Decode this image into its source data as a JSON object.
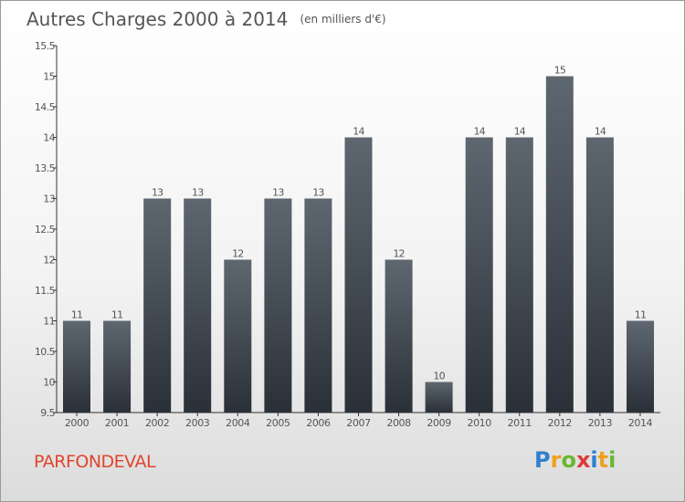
{
  "title": "Autres Charges 2000 à 2014",
  "subtitle": "(en milliers d'€)",
  "commune": "PARFONDEVAL",
  "logo": {
    "letters": [
      "P",
      "r",
      "o",
      "x",
      "i",
      "t",
      "i"
    ],
    "colors": [
      "#2f7fd0",
      "#f0a020",
      "#6ab82f",
      "#e03a3a",
      "#2f7fd0",
      "#f0a020",
      "#6ab82f"
    ]
  },
  "colors": {
    "bar_top": "#5e6770",
    "bar_bottom": "#2a3038",
    "axis": "#333333",
    "text": "#555555",
    "commune": "#e0452b"
  },
  "chart_data": {
    "type": "bar",
    "title": "Autres Charges 2000 à 2014",
    "subtitle": "(en milliers d'€)",
    "xlabel": "",
    "ylabel": "",
    "categories": [
      "2000",
      "2001",
      "2002",
      "2003",
      "2004",
      "2005",
      "2006",
      "2007",
      "2008",
      "2009",
      "2010",
      "2011",
      "2012",
      "2013",
      "2014"
    ],
    "values": [
      11,
      11,
      13,
      13,
      12,
      13,
      13,
      14,
      12,
      10,
      14,
      14,
      15,
      14,
      11
    ],
    "data_labels": [
      "11",
      "11",
      "13",
      "13",
      "12",
      "13",
      "13",
      "14",
      "12",
      "10",
      "14",
      "14",
      "15",
      "14",
      "11"
    ],
    "ylim": [
      9.5,
      15.5
    ],
    "yticks": [
      9.5,
      10,
      10.5,
      11,
      11.5,
      12,
      12.5,
      13,
      13.5,
      14,
      14.5,
      15,
      15.5
    ],
    "ytick_labels": [
      "9.5",
      "10",
      "10.5",
      "11",
      "11.5",
      "12",
      "12.5",
      "13",
      "13.5",
      "14",
      "14.5",
      "15",
      "15.5"
    ],
    "grid": false,
    "legend": "none"
  }
}
